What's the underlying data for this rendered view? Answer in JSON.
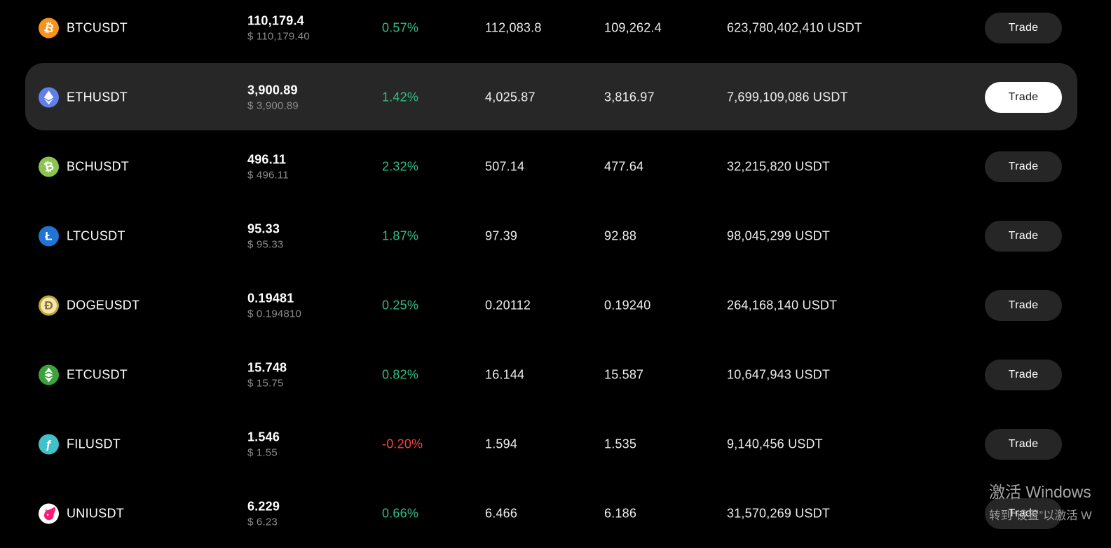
{
  "colors": {
    "background": "#000000",
    "green": "#2EBD85",
    "red": "#F0443E",
    "row_highlight": "#272727",
    "button_bg": "#262626",
    "button_active_bg": "#FFFFFF",
    "text_primary": "#FFFFFF",
    "text_secondary": "#8B8B8B"
  },
  "labels": {
    "trade": "Trade"
  },
  "watermark": {
    "line1": "激活 Windows",
    "line2": "转到“设置”以激活 W"
  },
  "table": {
    "rows": [
      {
        "symbol": "BTCUSDT",
        "price": "110,179.4",
        "usd": "$ 110,179.40",
        "change": "0.57%",
        "direction": "up",
        "high": "112,083.8",
        "low": "109,262.4",
        "volume": "623,780,402,410 USDT",
        "highlighted": false,
        "icon": {
          "name": "btc-icon",
          "bg": "#F7931A",
          "glyph": "₿",
          "glyph_color": "#FFFFFF",
          "rotate": 14
        }
      },
      {
        "symbol": "ETHUSDT",
        "price": "3,900.89",
        "usd": "$ 3,900.89",
        "change": "1.42%",
        "direction": "up",
        "high": "4,025.87",
        "low": "3,816.97",
        "volume": "7,699,109,086 USDT",
        "highlighted": true,
        "icon": {
          "name": "eth-icon",
          "bg": "#627EEA",
          "shape": "eth",
          "shape_color": "#FFFFFF"
        }
      },
      {
        "symbol": "BCHUSDT",
        "price": "496.11",
        "usd": "$ 496.11",
        "change": "2.32%",
        "direction": "up",
        "high": "507.14",
        "low": "477.64",
        "volume": "32,215,820 USDT",
        "highlighted": false,
        "icon": {
          "name": "bch-icon",
          "bg": "#8DC351",
          "glyph": "₿",
          "glyph_color": "#FFFFFF",
          "rotate": -14
        }
      },
      {
        "symbol": "LTCUSDT",
        "price": "95.33",
        "usd": "$ 95.33",
        "change": "1.87%",
        "direction": "up",
        "high": "97.39",
        "low": "92.88",
        "volume": "98,045,299 USDT",
        "highlighted": false,
        "icon": {
          "name": "ltc-icon",
          "bg": "#2173D4",
          "glyph": "Ł",
          "glyph_color": "#FFFFFF",
          "rotate": 0
        }
      },
      {
        "symbol": "DOGEUSDT",
        "price": "0.19481",
        "usd": "$ 0.194810",
        "change": "0.25%",
        "direction": "up",
        "high": "0.20112",
        "low": "0.19240",
        "volume": "264,168,140 USDT",
        "highlighted": false,
        "icon": {
          "name": "doge-icon",
          "bg": "#C2A633",
          "inner": "#F2E6B6",
          "glyph": "Ð",
          "glyph_color": "#8A6D1F",
          "rotate": 0
        }
      },
      {
        "symbol": "ETCUSDT",
        "price": "15.748",
        "usd": "$ 15.75",
        "change": "0.82%",
        "direction": "up",
        "high": "16.144",
        "low": "15.587",
        "volume": "10,647,943 USDT",
        "highlighted": false,
        "icon": {
          "name": "etc-icon",
          "bg": "#3AA33A",
          "shape": "etc",
          "shape_color": "#FFFFFF"
        }
      },
      {
        "symbol": "FILUSDT",
        "price": "1.546",
        "usd": "$ 1.55",
        "change": "-0.20%",
        "direction": "down",
        "high": "1.594",
        "low": "1.535",
        "volume": "9,140,456 USDT",
        "highlighted": false,
        "icon": {
          "name": "fil-icon",
          "bg": "#41C1CA",
          "glyph": "ƒ",
          "glyph_color": "#FFFFFF",
          "rotate": 0
        }
      },
      {
        "symbol": "UNIUSDT",
        "price": "6.229",
        "usd": "$ 6.23",
        "change": "0.66%",
        "direction": "up",
        "high": "6.466",
        "low": "6.186",
        "volume": "31,570,269 USDT",
        "highlighted": false,
        "icon": {
          "name": "uni-icon",
          "bg": "#FFFFFF",
          "shape": "uni",
          "shape_color": "#FB1B76"
        }
      }
    ]
  }
}
